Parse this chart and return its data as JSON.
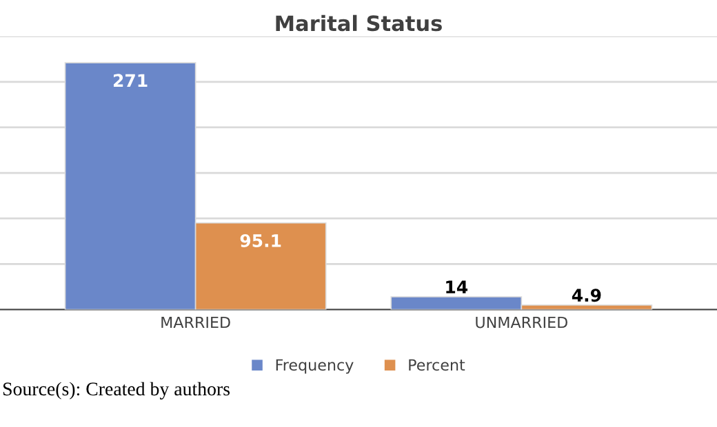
{
  "chart_data": {
    "type": "bar",
    "title": "Marital Status",
    "categories": [
      "MARRIED",
      "UNMARRIED"
    ],
    "series": [
      {
        "name": "Frequency",
        "color": "#6a87c9",
        "values": [
          271,
          14
        ]
      },
      {
        "name": "Percent",
        "color": "#de904f",
        "values": [
          95.1,
          4.9
        ]
      }
    ],
    "ylim": [
      0,
      300
    ],
    "yticks": [
      {
        "value": 0,
        "label": null
      },
      {
        "value": 50,
        "label": null
      },
      {
        "value": 100,
        "label": null
      },
      {
        "value": 150,
        "label": null
      },
      {
        "value": 200,
        "label": null
      },
      {
        "value": 250,
        "label": null
      },
      {
        "value": 300,
        "label": null
      }
    ],
    "tick_labels": "x",
    "grid": "y",
    "legend": "bottom",
    "data_labels": true,
    "annotations": [
      "Source(s): Created by authors"
    ]
  }
}
